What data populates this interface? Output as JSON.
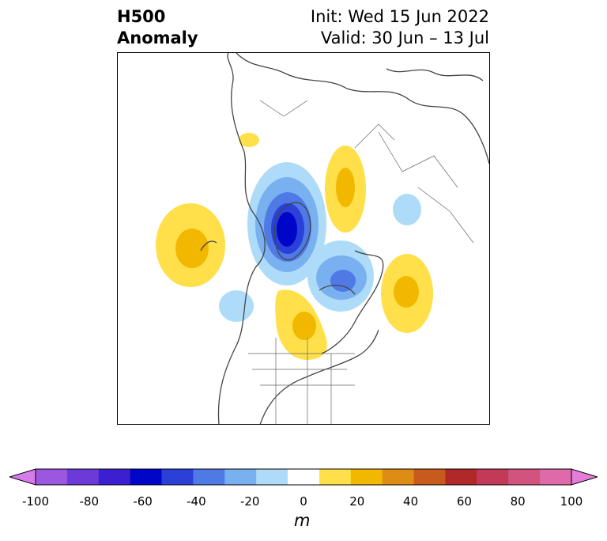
{
  "title": {
    "left_line1": "H500",
    "left_line2": "Anomaly",
    "right_line1": "Init: Wed 15 Jun 2022",
    "right_line2": "Valid: 30 Jun – 13 Jul"
  },
  "colorbar": {
    "unit": "m",
    "min": -100,
    "max": 100,
    "ticks": [
      {
        "label": "-100",
        "value": -100
      },
      {
        "label": "-80",
        "value": -80
      },
      {
        "label": "-60",
        "value": -60
      },
      {
        "label": "-40",
        "value": -40
      },
      {
        "label": "-20",
        "value": -20
      },
      {
        "label": "0",
        "value": 0
      },
      {
        "label": "20",
        "value": 20
      },
      {
        "label": "40",
        "value": 40
      },
      {
        "label": "60",
        "value": 60
      },
      {
        "label": "80",
        "value": 80
      },
      {
        "label": "100",
        "value": 100
      }
    ],
    "extend_low_color": "#d67be8",
    "extend_high_color": "#e47cd8",
    "bins": [
      "#9b57e0",
      "#6b3ad8",
      "#3b1fd0",
      "#0006c8",
      "#2a40d8",
      "#4f7ae6",
      "#79b0f0",
      "#aedcf8",
      "#ffffff",
      "#ffe04a",
      "#f2b800",
      "#df8c14",
      "#c85a1c",
      "#b0282a",
      "#c23a58",
      "#d2547e",
      "#de6aaa"
    ]
  },
  "map": {
    "projection": "north-polar-stereographic",
    "anomaly_colors": {
      "light_blue": "#aedcf8",
      "mid_blue": "#79b0f0",
      "blue": "#4f7ae6",
      "dark_blue": "#2a40d8",
      "deep_blue": "#0006c8",
      "light_yellow": "#ffe04a",
      "gold": "#f2b800"
    }
  }
}
